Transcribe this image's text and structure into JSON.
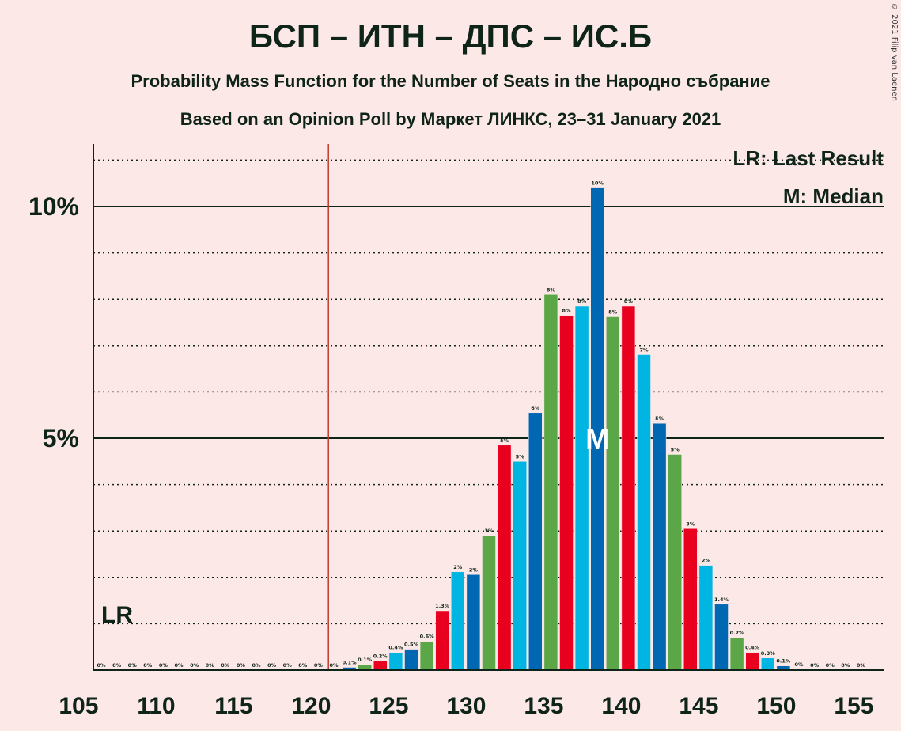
{
  "title": "БСП – ИТН – ДПС – ИС.Б",
  "subtitle": "Probability Mass Function for the Number of Seats in the Народно събрание",
  "subtitle2": "Based on an Opinion Poll by Маркет ЛИНКС, 23–31 January 2021",
  "copyright": "© 2021 Filip van Laenen",
  "legend": {
    "last_result": "LR: Last Result",
    "median": "M: Median"
  },
  "markers": {
    "last_result_label": "LR",
    "median_label": "M"
  },
  "colors": {
    "background": "#FDE8E8",
    "series": [
      "#0068B3",
      "#5BA646",
      "#E8001E",
      "#00B5E2"
    ],
    "majority_line": "#C0392B"
  },
  "chart_data": {
    "type": "bar",
    "x_tick_labels": [
      "105",
      "110",
      "115",
      "120",
      "125",
      "130",
      "135",
      "140",
      "145",
      "150",
      "155"
    ],
    "y_tick_labels": [
      "5%",
      "10%"
    ],
    "xlim": [
      105,
      155
    ],
    "ylim": [
      0,
      11.4
    ],
    "last_result_seat": 106,
    "majority_seat": 121,
    "median_seat": 138,
    "x": [
      106,
      107,
      108,
      109,
      110,
      111,
      112,
      113,
      114,
      115,
      116,
      117,
      118,
      119,
      120,
      121,
      122,
      123,
      124,
      125,
      126,
      127,
      128,
      129,
      130,
      131,
      132,
      133,
      134,
      135,
      136,
      137,
      138,
      139,
      140,
      141,
      142,
      143,
      144,
      145,
      146,
      147,
      148,
      149,
      150,
      151,
      152,
      153,
      154,
      155
    ],
    "values": [
      0,
      0,
      0,
      0,
      0,
      0,
      0,
      0,
      0,
      0,
      0,
      0,
      0,
      0,
      0,
      0,
      0.06,
      0.12,
      0.2,
      0.38,
      0.45,
      0.62,
      1.28,
      2.12,
      2.06,
      2.9,
      4.85,
      4.5,
      5.55,
      8.1,
      7.65,
      7.85,
      10.4,
      7.62,
      7.85,
      6.8,
      5.32,
      4.65,
      3.05,
      2.26,
      1.42,
      0.7,
      0.38,
      0.26,
      0.09,
      0.02,
      0,
      0,
      0,
      0
    ],
    "data_labels": [
      "0%",
      "0%",
      "0%",
      "0%",
      "0%",
      "0%",
      "0%",
      "0%",
      "0%",
      "0%",
      "0%",
      "0%",
      "0%",
      "0%",
      "0%",
      "0%",
      "0.1%",
      "0.1%",
      "0.2%",
      "0.4%",
      "0.5%",
      "0.6%",
      "1.3%",
      "2%",
      "2%",
      "3%",
      "5%",
      "5%",
      "6%",
      "8%",
      "8%",
      "8%",
      "10%",
      "8%",
      "8%",
      "7%",
      "5%",
      "5%",
      "3%",
      "2%",
      "1.4%",
      "0.7%",
      "0.4%",
      "0.3%",
      "0.1%",
      "0%",
      "0%",
      "0%",
      "0%",
      "0%"
    ]
  }
}
